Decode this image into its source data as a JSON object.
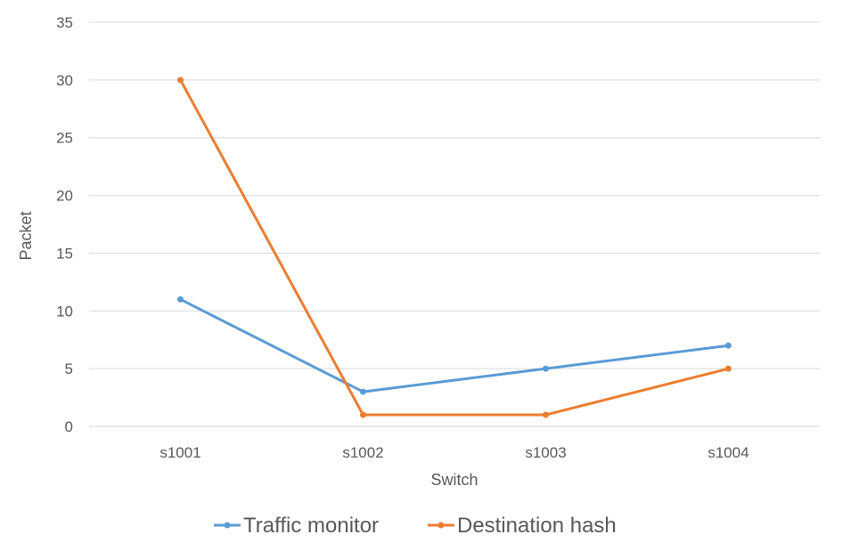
{
  "chart_data": {
    "type": "line",
    "title": "",
    "xlabel": "Switch",
    "ylabel": "Packet",
    "categories": [
      "s1001",
      "s1002",
      "s1003",
      "s1004"
    ],
    "ylim": [
      0,
      35
    ],
    "yticks": [
      0,
      5,
      10,
      15,
      20,
      25,
      30,
      35
    ],
    "grid": "horizontal",
    "legend": "bottom",
    "series": [
      {
        "name": "Traffic monitor",
        "color": "#5B9BD5",
        "values": [
          11,
          3,
          5,
          7
        ]
      },
      {
        "name": "Destination hash",
        "color": "#ED7D31",
        "values": [
          30,
          1,
          1,
          5
        ]
      }
    ]
  }
}
